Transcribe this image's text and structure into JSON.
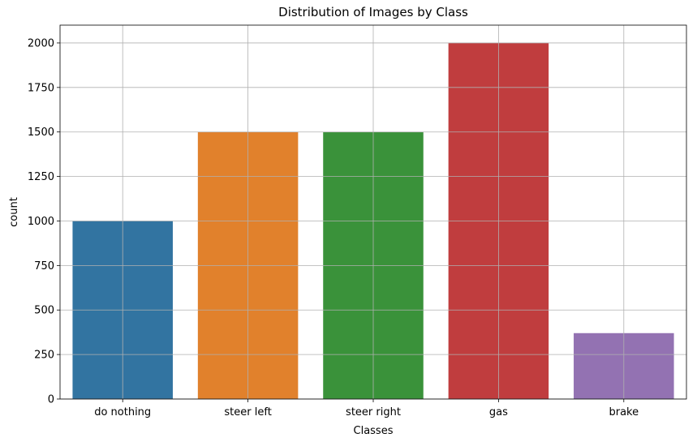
{
  "chart_data": {
    "type": "bar",
    "title": "Distribution of Images by Class",
    "xlabel": "Classes",
    "ylabel": "count",
    "categories": [
      "do nothing",
      "steer left",
      "steer right",
      "gas",
      "brake"
    ],
    "values": [
      1000,
      1500,
      1500,
      2000,
      370
    ],
    "colors": [
      "#3274a1",
      "#e1812c",
      "#3a923a",
      "#c03d3e",
      "#9372b2"
    ],
    "ylim": [
      0,
      2100
    ],
    "yticks": [
      0,
      250,
      500,
      750,
      1000,
      1250,
      1500,
      1750,
      2000
    ],
    "grid": true,
    "legend": "none"
  }
}
